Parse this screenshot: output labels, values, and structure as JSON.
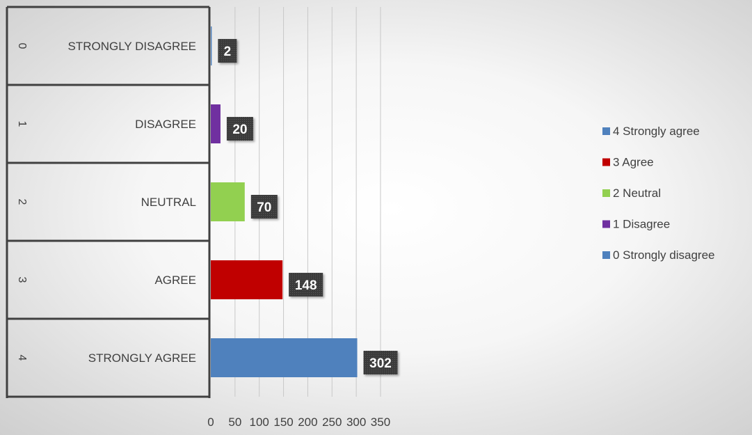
{
  "chart_data": {
    "type": "bar",
    "orientation": "horizontal",
    "title": "",
    "xlabel": "",
    "ylabel": "",
    "xlim": [
      0,
      350
    ],
    "x_ticks": [
      0,
      50,
      100,
      150,
      200,
      250,
      300,
      350
    ],
    "grid": true,
    "legend_position": "right",
    "categories": [
      {
        "code": "0",
        "label": "STRONGLY DISAGREE",
        "value": 2,
        "color": "#4f81bd"
      },
      {
        "code": "1",
        "label": "DISAGREE",
        "value": 20,
        "color": "#7030a0"
      },
      {
        "code": "2",
        "label": "NEUTRAL",
        "value": 70,
        "color": "#92d050"
      },
      {
        "code": "3",
        "label": "AGREE",
        "value": 148,
        "color": "#c00000"
      },
      {
        "code": "4",
        "label": "STRONGLY AGREE",
        "value": 302,
        "color": "#4f81bd"
      }
    ],
    "legend": [
      {
        "label": "4 Strongly agree",
        "color": "#4f81bd"
      },
      {
        "label": "3 Agree",
        "color": "#c00000"
      },
      {
        "label": "2 Neutral",
        "color": "#92d050"
      },
      {
        "label": "1 Disagree",
        "color": "#7030a0"
      },
      {
        "label": "0 Strongly disagree",
        "color": "#4f81bd"
      }
    ],
    "data_label_bg": "#404040"
  }
}
